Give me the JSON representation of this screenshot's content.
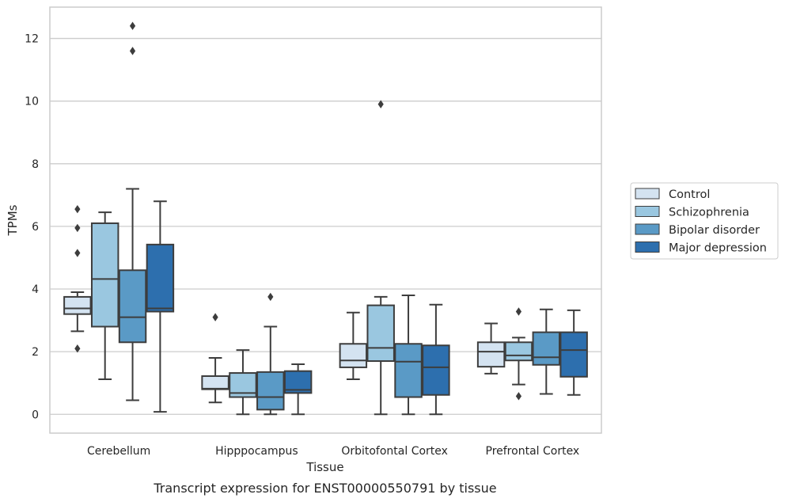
{
  "chart_data": {
    "type": "box",
    "title": "",
    "caption": "Transcript expression for ENST00000550791 by tissue",
    "xlabel": "Tissue",
    "ylabel": "TPMs",
    "ylim": [
      -0.6,
      13.0
    ],
    "yticks": [
      0,
      2,
      4,
      6,
      8,
      10,
      12
    ],
    "grid": "horizontal",
    "legend_position": "right",
    "categories": [
      "Cerebellum",
      "Hipppocampus",
      "Orbitofontal Cortex",
      "Prefrontal Cortex"
    ],
    "series": [
      {
        "name": "Control",
        "color": "#d4e3f1",
        "boxes": [
          {
            "whislo": 2.65,
            "q1": 3.2,
            "med": 3.38,
            "q3": 3.75,
            "whishi": 3.9,
            "fliers": [
              2.1,
              5.15,
              5.95,
              6.55
            ]
          },
          {
            "whislo": 0.38,
            "q1": 0.8,
            "med": 0.82,
            "q3": 1.22,
            "whishi": 1.8,
            "fliers": [
              3.1
            ]
          },
          {
            "whislo": 1.12,
            "q1": 1.5,
            "med": 1.72,
            "q3": 2.25,
            "whishi": 3.25,
            "fliers": []
          },
          {
            "whislo": 1.3,
            "q1": 1.52,
            "med": 2.0,
            "q3": 2.3,
            "whishi": 2.9,
            "fliers": []
          }
        ]
      },
      {
        "name": "Schizophrenia",
        "color": "#9ac7e0",
        "boxes": [
          {
            "whislo": 1.12,
            "q1": 2.8,
            "med": 4.32,
            "q3": 6.1,
            "whishi": 6.45,
            "fliers": []
          },
          {
            "whislo": 0.0,
            "q1": 0.55,
            "med": 0.68,
            "q3": 1.32,
            "whishi": 2.05,
            "fliers": []
          },
          {
            "whislo": 0.0,
            "q1": 1.7,
            "med": 2.12,
            "q3": 3.48,
            "whishi": 3.75,
            "fliers": [
              9.9
            ]
          },
          {
            "whislo": 0.95,
            "q1": 1.72,
            "med": 1.88,
            "q3": 2.3,
            "whishi": 2.45,
            "fliers": [
              0.58,
              3.28
            ]
          }
        ]
      },
      {
        "name": "Bipolar disorder",
        "color": "#5a9ac6",
        "boxes": [
          {
            "whislo": 0.45,
            "q1": 2.3,
            "med": 3.1,
            "q3": 4.6,
            "whishi": 7.2,
            "fliers": [
              11.6,
              12.4
            ]
          },
          {
            "whislo": 0.0,
            "q1": 0.15,
            "med": 0.55,
            "q3": 1.35,
            "whishi": 2.8,
            "fliers": [
              3.75
            ]
          },
          {
            "whislo": 0.0,
            "q1": 0.55,
            "med": 1.68,
            "q3": 2.25,
            "whishi": 3.8,
            "fliers": []
          },
          {
            "whislo": 0.65,
            "q1": 1.58,
            "med": 1.82,
            "q3": 2.62,
            "whishi": 3.35,
            "fliers": []
          }
        ]
      },
      {
        "name": "Major depression",
        "color": "#2d6fae",
        "boxes": [
          {
            "whislo": 0.08,
            "q1": 3.28,
            "med": 3.38,
            "q3": 5.42,
            "whishi": 6.8,
            "fliers": []
          },
          {
            "whislo": 0.0,
            "q1": 0.68,
            "med": 0.78,
            "q3": 1.38,
            "whishi": 1.6,
            "fliers": []
          },
          {
            "whislo": 0.0,
            "q1": 0.62,
            "med": 1.5,
            "q3": 2.2,
            "whishi": 3.5,
            "fliers": []
          },
          {
            "whislo": 0.62,
            "q1": 1.2,
            "med": 2.05,
            "q3": 2.62,
            "whishi": 3.32,
            "fliers": []
          }
        ]
      }
    ]
  }
}
